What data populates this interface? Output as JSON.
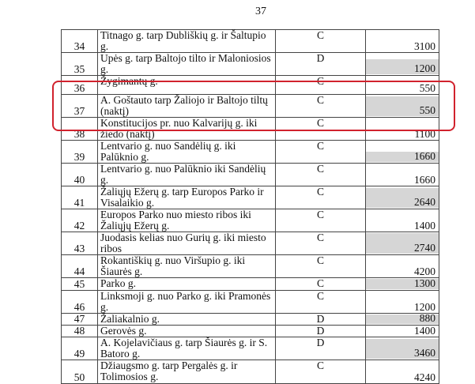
{
  "page_number": "37",
  "highlight_color": "#d1222d",
  "rows": [
    {
      "no": "34",
      "desc": "Titnago g. tarp Dubliškių g. ir Šaltupio g.",
      "cls": "C",
      "val": "3100",
      "shaded": false
    },
    {
      "no": "35",
      "desc": "Upės g. tarp Baltojo tilto ir Maloniosios g.",
      "cls": "D",
      "val": "1200",
      "shaded": true
    },
    {
      "no": "36",
      "desc": "Žygimantų g.",
      "cls": "C",
      "val": "550",
      "shaded": false
    },
    {
      "no": "37",
      "desc": "A. Goštauto tarp Žaliojo ir Baltojo tiltų (naktį)",
      "cls": "C",
      "val": "550",
      "shaded": true,
      "highlighted": true
    },
    {
      "no": "38",
      "desc": "Konstitucijos pr. nuo Kalvarijų g. iki žiedo (naktį)",
      "cls": "C",
      "val": "1100",
      "shaded": false,
      "highlighted": true
    },
    {
      "no": "39",
      "desc": "Lentvario g. nuo Sandėlių g. iki Palūknio g.",
      "cls": "C",
      "val": "1660",
      "shaded": true
    },
    {
      "no": "40",
      "desc": "Lentvario g. nuo Palūknio iki Sandėlių g.",
      "cls": "C",
      "val": "1660",
      "shaded": false
    },
    {
      "no": "41",
      "desc": "Žaliųjų Ežerų g. tarp Europos Parko ir Visalaikio g.",
      "cls": "C",
      "val": "2640",
      "shaded": true
    },
    {
      "no": "42",
      "desc": "Europos Parko nuo miesto ribos iki Žaliųjų Ežerų g.",
      "cls": "C",
      "val": "1400",
      "shaded": false
    },
    {
      "no": "43",
      "desc": "Juodasis kelias nuo Gurių g. iki miesto ribos",
      "cls": "C",
      "val": "2740",
      "shaded": true
    },
    {
      "no": "44",
      "desc": "Rokantiškių g. nuo Viršupio g. iki Šiaurės g.",
      "cls": "C",
      "val": "4200",
      "shaded": false
    },
    {
      "no": "45",
      "desc": "Parko g.",
      "cls": "C",
      "val": "1300",
      "shaded": true
    },
    {
      "no": "46",
      "desc": "Linksmoji g. nuo Parko g. iki Pramonės g.",
      "cls": "C",
      "val": "1200",
      "shaded": false
    },
    {
      "no": "47",
      "desc": "Žaliakalnio g.",
      "cls": "D",
      "val": "880",
      "shaded": true
    },
    {
      "no": "48",
      "desc": "Gerovės g.",
      "cls": "D",
      "val": "1400",
      "shaded": false
    },
    {
      "no": "49",
      "desc": "A. Kojelavičiaus g. tarp Šiaurės g. ir S. Batoro g.",
      "cls": "D",
      "val": "3460",
      "shaded": true
    },
    {
      "no": "50",
      "desc": "Džiaugsmo g. tarp Pergalės g. ir Tolimosios g.",
      "cls": "C",
      "val": "4240",
      "shaded": false
    }
  ]
}
